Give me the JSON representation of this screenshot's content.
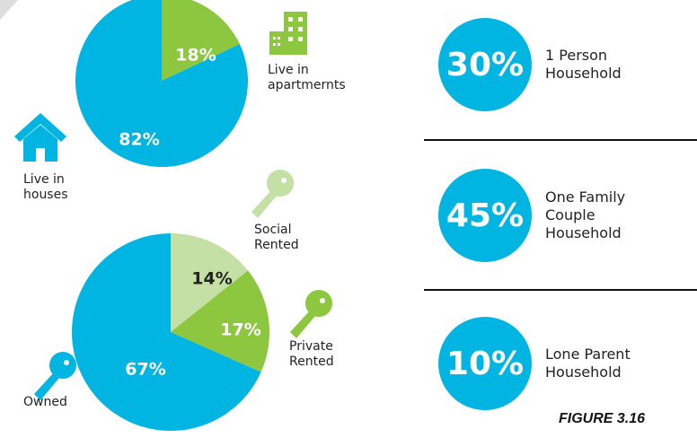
{
  "chart_data": [
    {
      "type": "pie",
      "categories": [
        "Live in apartmernts",
        "Live in houses"
      ],
      "values": [
        18,
        82
      ],
      "value_labels": [
        "18%",
        "82%"
      ],
      "colors": [
        "#8dc63f",
        "#00b5e2"
      ]
    },
    {
      "type": "pie",
      "categories": [
        "Social Rented",
        "Private Rented",
        "Owned"
      ],
      "values": [
        14,
        17,
        67
      ],
      "value_labels": [
        "14%",
        "17%",
        "67%"
      ],
      "colors": [
        "#c5e0a5",
        "#8dc63f",
        "#00b5e2"
      ]
    },
    {
      "type": "stat",
      "categories": [
        "1 Person Household",
        "One Family Couple Household",
        "Lone Parent Household"
      ],
      "values": [
        30,
        45,
        10
      ],
      "value_labels": [
        "30%",
        "45%",
        "10%"
      ],
      "color": "#00b5e2"
    }
  ],
  "caption": "FIGURE 3.16"
}
